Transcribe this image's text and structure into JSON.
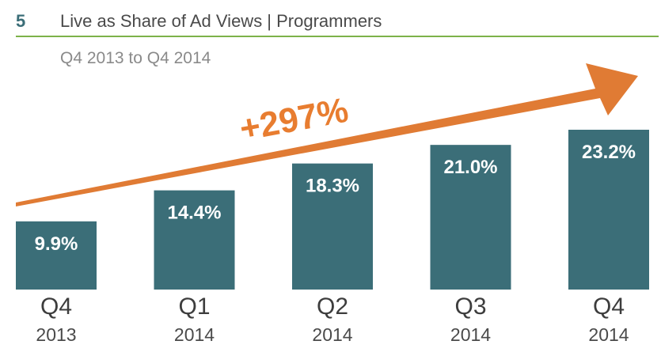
{
  "header": {
    "section_number": "5",
    "title": "Live as Share of Ad Views | Programmers",
    "subtitle": "Q4 2013 to Q4 2014"
  },
  "annotation": {
    "growth_label": "+297%"
  },
  "colors": {
    "bar": "#3b6e78",
    "arrow": "#e07b34",
    "rule": "#7db249"
  },
  "chart_data": {
    "type": "bar",
    "title": "Live as Share of Ad Views | Programmers",
    "subtitle": "Q4 2013 to Q4 2014",
    "categories": [
      {
        "quarter": "Q4",
        "year": "2013"
      },
      {
        "quarter": "Q1",
        "year": "2014"
      },
      {
        "quarter": "Q2",
        "year": "2014"
      },
      {
        "quarter": "Q3",
        "year": "2014"
      },
      {
        "quarter": "Q4",
        "year": "2014"
      }
    ],
    "values": [
      9.9,
      14.4,
      18.3,
      21.0,
      23.2
    ],
    "value_labels": [
      "9.9%",
      "14.4%",
      "18.3%",
      "21.0%",
      "23.2%"
    ],
    "xlabel": "",
    "ylabel": "",
    "ylim": [
      0,
      23.2
    ],
    "grid": false
  }
}
